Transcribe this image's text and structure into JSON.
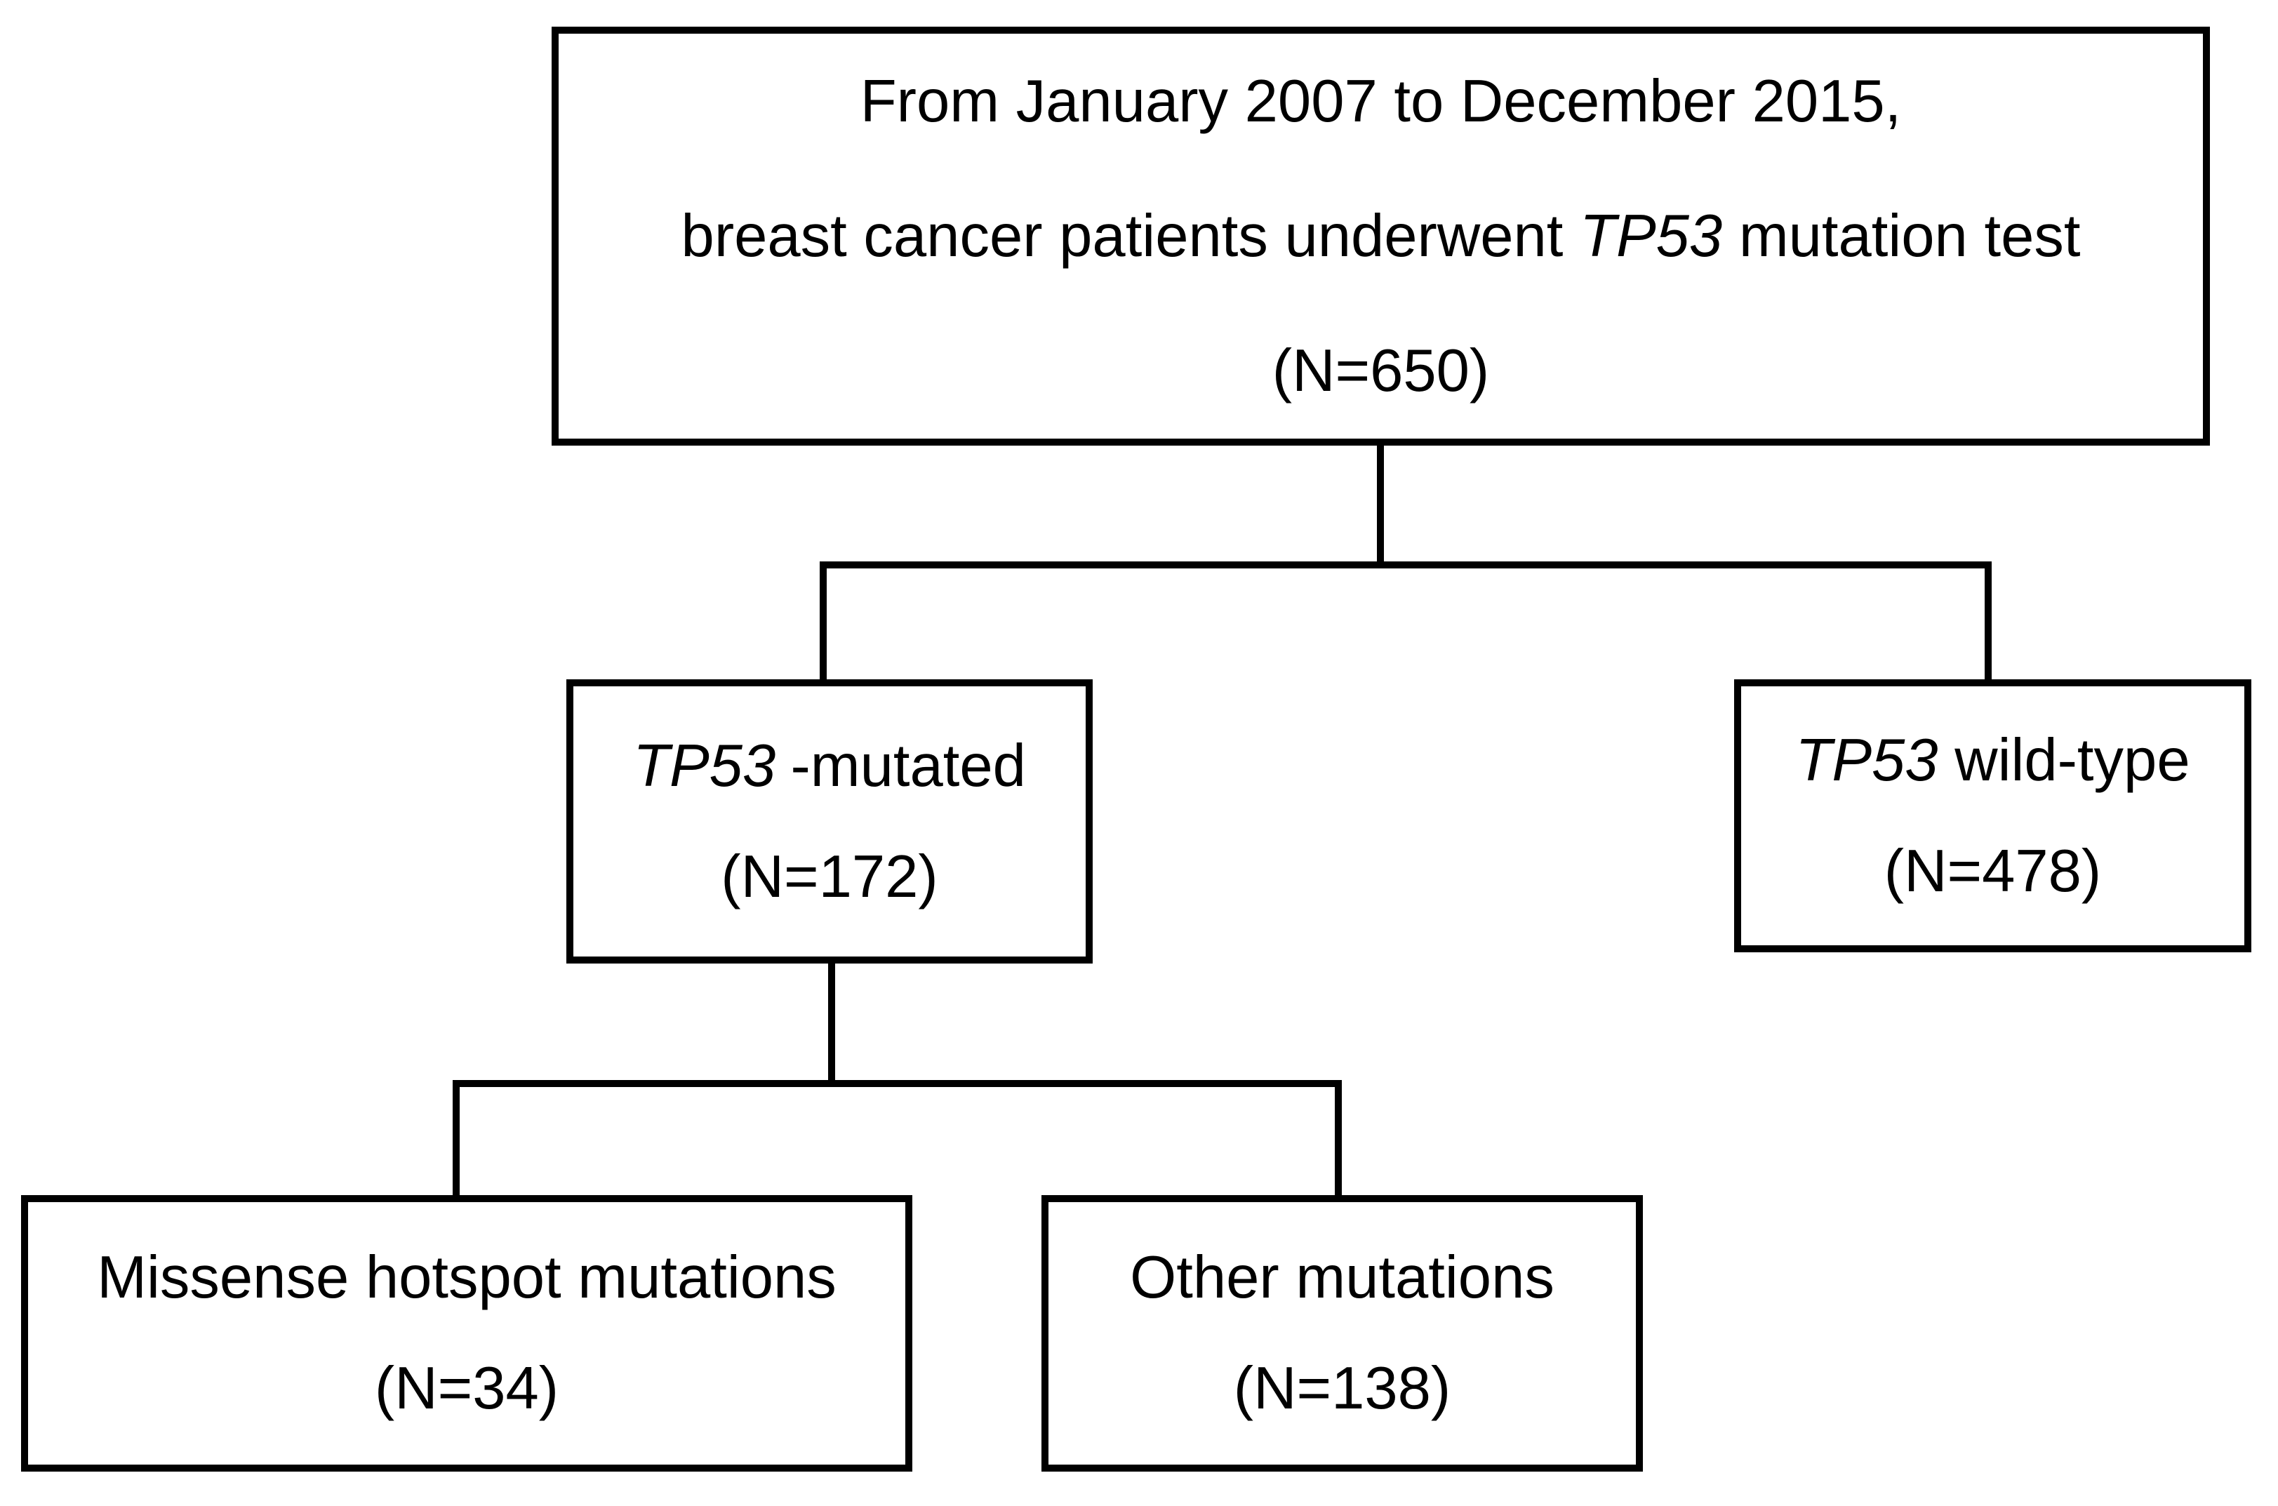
{
  "colors": {
    "background": "#ffffff",
    "line": "#000000",
    "text": "#000000"
  },
  "nodes": {
    "root": {
      "line1": "From January 2007 to December 2015,",
      "line2_pre": "breast cancer patients underwent ",
      "line2_gene": "TP53",
      "line2_post": " mutation test",
      "line3": "(N=650)"
    },
    "mutated": {
      "gene": "TP53",
      "label": "-mutated",
      "count": "(N=172)"
    },
    "wildtype": {
      "gene": "TP53",
      "label": " wild-type",
      "count": "(N=478)"
    },
    "missense": {
      "label": "Missense hotspot mutations",
      "count": "(N=34)"
    },
    "other": {
      "label": "Other mutations",
      "count": "(N=138)"
    }
  }
}
